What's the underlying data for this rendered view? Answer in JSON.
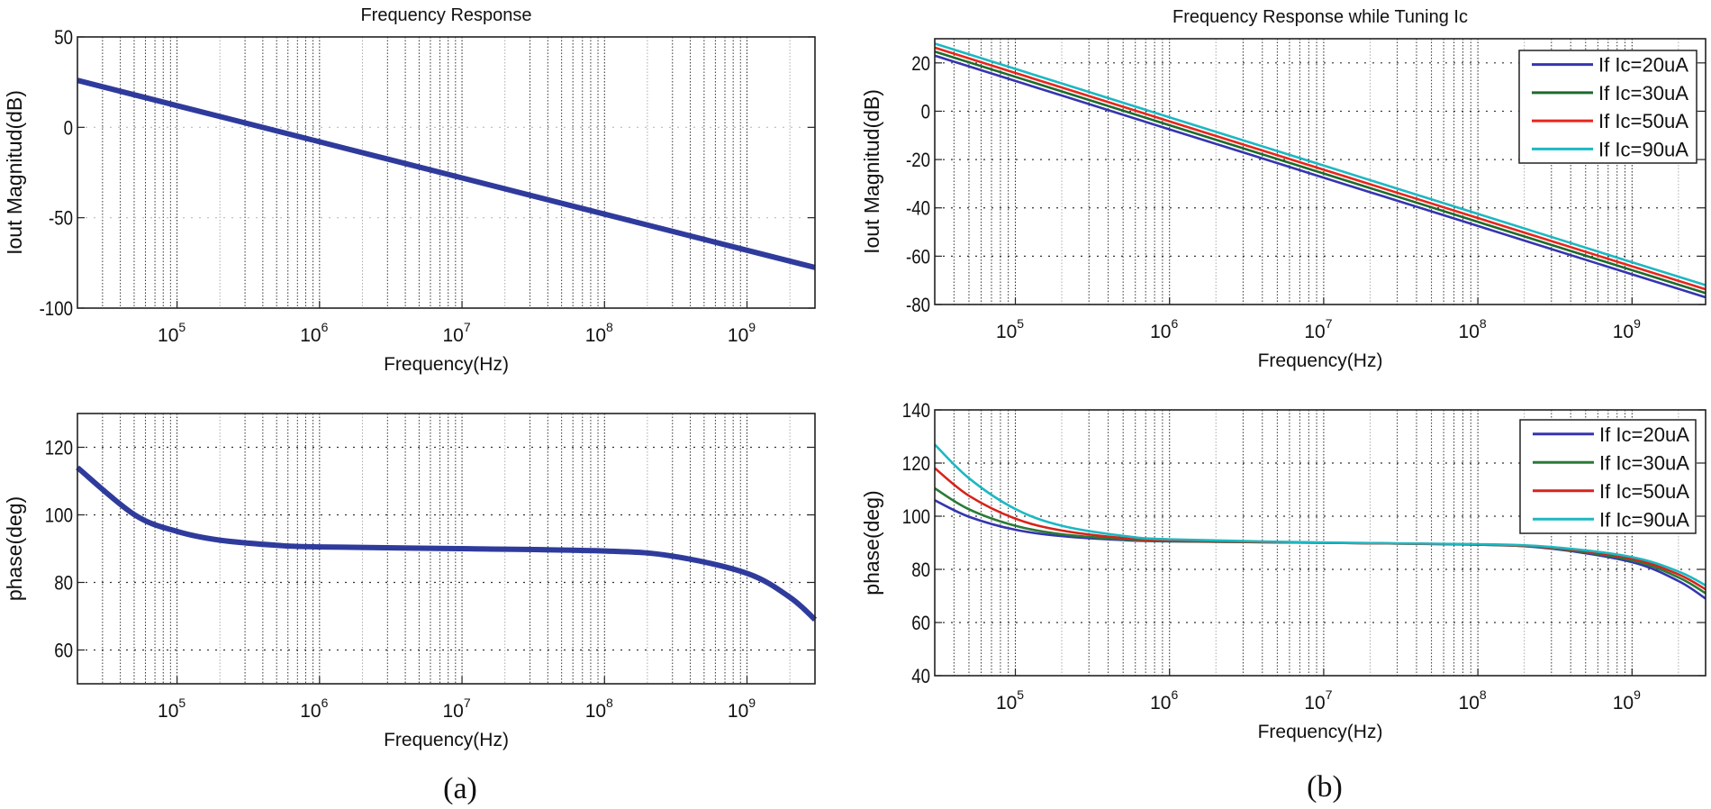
{
  "panel_labels": [
    "(a)",
    "(b)"
  ],
  "chart_data": [
    {
      "type": "line",
      "panel": "(a)",
      "title": "Frequency Response",
      "xlabel": "Frequency(Hz)",
      "ylabel": "Iout Magnitud(dB)",
      "xscale": "log",
      "xlim": [
        20000,
        3000000000
      ],
      "ylim": [
        -100,
        50
      ],
      "yticks": [
        -100,
        -50,
        0,
        50
      ],
      "xticks": [
        100000,
        1000000,
        10000000,
        100000000,
        1000000000
      ],
      "grid": true,
      "legend": null,
      "series": [
        {
          "color": "#2f3b9c",
          "x": [
            20000,
            100000,
            1000000,
            10000000,
            100000000,
            1000000000,
            3000000000
          ],
          "y": [
            26.0,
            12,
            -8,
            -28,
            -48,
            -68,
            -77.5
          ]
        }
      ]
    },
    {
      "type": "line",
      "panel": "(a)",
      "title": "",
      "xlabel": "Frequency(Hz)",
      "ylabel": "phase(deg)",
      "xscale": "log",
      "xlim": [
        20000,
        3000000000
      ],
      "ylim": [
        50,
        130
      ],
      "yticks": [
        60,
        80,
        100,
        120
      ],
      "xticks": [
        100000,
        1000000,
        10000000,
        100000000,
        1000000000
      ],
      "grid": true,
      "legend": null,
      "series": [
        {
          "color": "#2f3b9c",
          "x": [
            20000,
            50000,
            100000,
            200000,
            500000,
            1000000,
            10000000,
            100000000,
            300000000,
            1000000000,
            2000000000,
            3000000000
          ],
          "y": [
            114,
            100.1,
            95.1,
            92.5,
            91.0,
            90.5,
            90.0,
            89.3,
            87.8,
            82.7,
            75.6,
            69.0
          ]
        }
      ]
    },
    {
      "type": "line",
      "panel": "(b)",
      "title": "Frequency Response while Tuning Ic",
      "xlabel": "Frequency(Hz)",
      "ylabel": "Iout Magnitud(dB)",
      "xscale": "log",
      "xlim": [
        30000,
        3000000000
      ],
      "ylim": [
        -80,
        30
      ],
      "yticks": [
        -80,
        -60,
        -40,
        -20,
        0,
        20
      ],
      "xticks": [
        100000,
        1000000,
        10000000,
        100000000,
        1000000000
      ],
      "grid": true,
      "legend": "top-right",
      "series": [
        {
          "name": "If Ic=20uA",
          "color": "#3535b0",
          "x": [
            30000,
            1000000,
            10000000,
            100000000,
            1000000000,
            3000000000
          ],
          "y": [
            23,
            -7.5,
            -27.5,
            -47.5,
            -67.5,
            -77
          ]
        },
        {
          "name": "If Ic=30uA",
          "color": "#1d6b2c",
          "x": [
            30000,
            1000000,
            10000000,
            100000000,
            1000000000,
            3000000000
          ],
          "y": [
            24.7,
            -5.8,
            -25.8,
            -45.8,
            -65.8,
            -75.3
          ]
        },
        {
          "name": "If Ic=50uA",
          "color": "#e8261c",
          "x": [
            30000,
            1000000,
            10000000,
            100000000,
            1000000000,
            3000000000
          ],
          "y": [
            26.3,
            -4.2,
            -24.2,
            -44.2,
            -64.2,
            -73.7
          ]
        },
        {
          "name": "If Ic=90uA",
          "color": "#1cb8c2",
          "x": [
            30000,
            1000000,
            10000000,
            100000000,
            1000000000,
            3000000000
          ],
          "y": [
            28,
            -2.5,
            -22.5,
            -42.5,
            -62.5,
            -72
          ]
        }
      ]
    },
    {
      "type": "line",
      "panel": "(b)",
      "title": "",
      "xlabel": "Frequency(Hz)",
      "ylabel": "phase(deg)",
      "xscale": "log",
      "xlim": [
        30000,
        3000000000
      ],
      "ylim": [
        40,
        140
      ],
      "yticks": [
        40,
        60,
        80,
        100,
        120,
        140
      ],
      "xticks": [
        100000,
        1000000,
        10000000,
        100000000,
        1000000000
      ],
      "grid": true,
      "legend": "top-right",
      "series": [
        {
          "name": "If Ic=20uA",
          "color": "#3535b0",
          "x": [
            30000,
            50000,
            100000,
            200000,
            500000,
            1000000,
            10000000,
            100000000,
            300000000,
            1000000000,
            2000000000,
            3000000000
          ],
          "y": [
            106.0,
            99.8,
            94.9,
            92.5,
            91.0,
            90.5,
            90.0,
            89.3,
            87.8,
            82.7,
            75.6,
            69.0
          ]
        },
        {
          "name": "If Ic=30uA",
          "color": "#2a7a36",
          "x": [
            30000,
            50000,
            100000,
            200000,
            500000,
            1000000,
            10000000,
            100000000,
            300000000,
            1000000000,
            2000000000,
            3000000000
          ],
          "y": [
            110.5,
            102.6,
            96.4,
            93.2,
            91.3,
            90.6,
            90.0,
            89.3,
            88.0,
            83.4,
            77.0,
            71.0
          ]
        },
        {
          "name": "If Ic=50uA",
          "color": "#d6231a",
          "x": [
            30000,
            50000,
            100000,
            200000,
            500000,
            1000000,
            10000000,
            100000000,
            300000000,
            1000000000,
            2000000000,
            3000000000
          ],
          "y": [
            118.1,
            107.7,
            99.1,
            94.6,
            91.8,
            90.9,
            90.0,
            89.4,
            88.2,
            84.0,
            78.1,
            72.5
          ]
        },
        {
          "name": "If Ic=90uA",
          "color": "#1cb8c2",
          "x": [
            30000,
            50000,
            100000,
            200000,
            500000,
            1000000,
            10000000,
            100000000,
            300000000,
            1000000000,
            2000000000,
            3000000000
          ],
          "y": [
            127.0,
            114.3,
            102.7,
            96.4,
            92.6,
            91.3,
            90.1,
            89.5,
            88.4,
            84.6,
            79.2,
            74.0
          ]
        }
      ]
    }
  ]
}
